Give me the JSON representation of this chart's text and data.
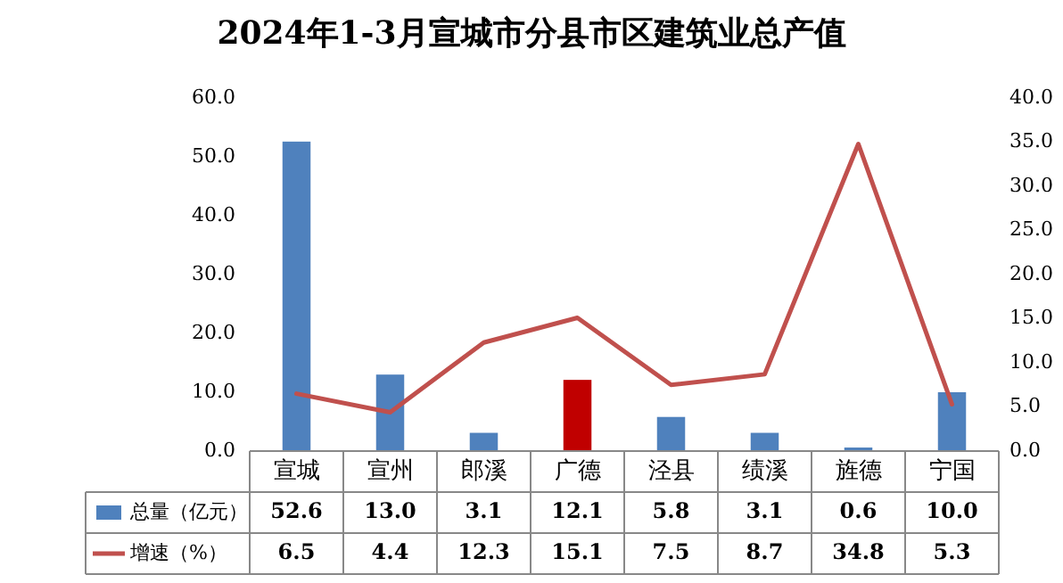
{
  "chart_data": {
    "type": "bar",
    "title": "2024年1-3月宣城市分县市区建筑业总产值",
    "categories": [
      "宣城",
      "宣州",
      "郎溪",
      "广德",
      "泾县",
      "绩溪",
      "旌德",
      "宁国"
    ],
    "series": [
      {
        "name": "总量（亿元）",
        "color": "#4f81bd",
        "value_labels": [
          "52.6",
          "13.0",
          "3.1",
          "12.1",
          "5.8",
          "3.1",
          "0.6",
          "10.0"
        ],
        "colors": [
          "#4f81bd",
          "#4f81bd",
          "#4f81bd",
          "#c00000",
          "#4f81bd",
          "#4f81bd",
          "#4f81bd",
          "#4f81bd"
        ],
        "values": [
          52.6,
          13.0,
          3.1,
          12.1,
          5.8,
          3.1,
          0.6,
          10.0
        ]
      },
      {
        "name": "增速（%）",
        "type": "line",
        "axis": "y2",
        "color": "#c0504d",
        "values": [
          6.5,
          4.4,
          12.3,
          15.1,
          7.5,
          8.7,
          34.8,
          5.3
        ]
      }
    ],
    "ylim": [
      0,
      60
    ],
    "yticks": [
      {
        "value": 0,
        "label": "0.0"
      },
      {
        "value": 10,
        "label": "10.0"
      },
      {
        "value": 20,
        "label": "20.0"
      },
      {
        "value": 30,
        "label": "30.0"
      },
      {
        "value": 40,
        "label": "40.0"
      },
      {
        "value": 50,
        "label": "50.0"
      },
      {
        "value": 60,
        "label": "60.0"
      }
    ],
    "y2lim": [
      0,
      40
    ],
    "y2ticks": [
      {
        "value": 0,
        "label": "0.0"
      },
      {
        "value": 5,
        "label": "5.0"
      },
      {
        "value": 10,
        "label": "10.0"
      },
      {
        "value": 15,
        "label": "15.0"
      },
      {
        "value": 20,
        "label": "20.0"
      },
      {
        "value": 25,
        "label": "25.0"
      },
      {
        "value": 30,
        "label": "30.0"
      },
      {
        "value": 35,
        "label": "35.0"
      },
      {
        "value": 40,
        "label": "40.0"
      }
    ],
    "data_labels": true,
    "legend": "bottom"
  }
}
